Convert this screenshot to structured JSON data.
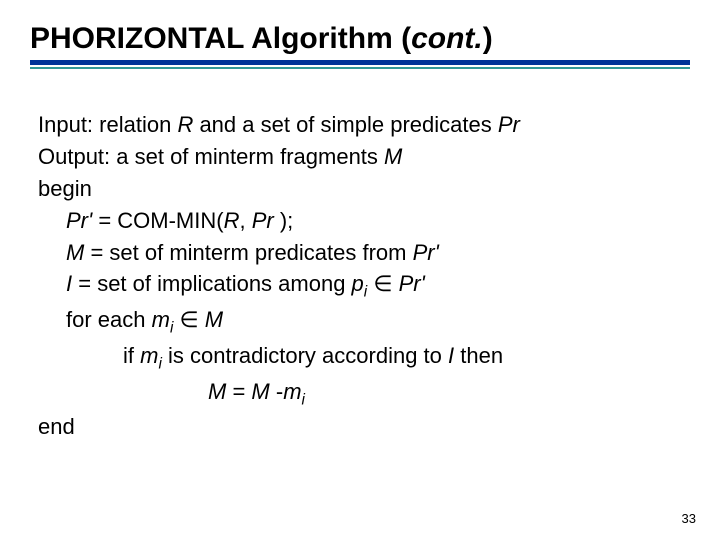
{
  "title": {
    "main": "PHORIZONTAL Algorithm (",
    "cont": "cont.",
    "close": ")",
    "fontsize": 30,
    "color": "#000000"
  },
  "rules": {
    "thick_color": "#003399",
    "thin_color": "#339999",
    "thick_height": 5,
    "thin_height": 2
  },
  "body": {
    "fontsize": 22,
    "color": "#000000",
    "lines": {
      "l1a": "Input:   relation ",
      "l1b": "R",
      "l1c": "  and a set of simple predicates ",
      "l1d": "Pr",
      "l2a": "Output:    a set of minterm fragments ",
      "l2b": "M",
      "l3": "begin",
      "l4a": "Pr' ",
      "l4b": "=  COM-MIN(",
      "l4c": "R",
      "l4d": ", ",
      "l4e": "Pr",
      "l4f": " );",
      "l5a": "M",
      "l5b": " = set of minterm predicates from ",
      "l5c": "Pr'",
      "l6a": "I",
      "l6b": " = set of implications among ",
      "l6c": "p",
      "l6d": "i",
      "l6e": " ∈ ",
      "l6f": "Pr'",
      "l7a": "for each ",
      "l7b": "m",
      "l7c": "i",
      "l7d": " ∈ ",
      "l7e": "M",
      "l8a": "if ",
      "l8b": "m",
      "l8c": "i",
      "l8d": " is contradictory according to ",
      "l8e": "I",
      "l8f": " then",
      "l9a": "M",
      "l9b": " = ",
      "l9c": "M",
      "l9d": " -",
      "l9e": "m",
      "l9f": "i",
      "l10": "end"
    }
  },
  "page_number": "33"
}
